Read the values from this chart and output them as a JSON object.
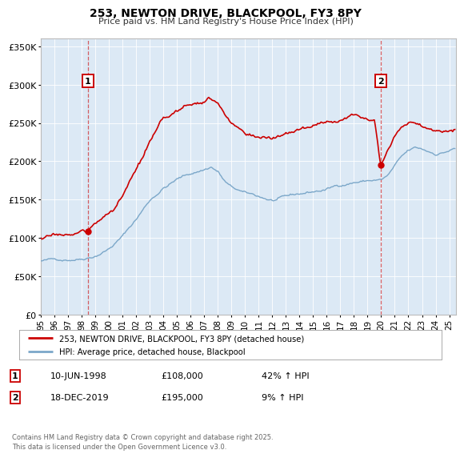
{
  "title": "253, NEWTON DRIVE, BLACKPOOL, FY3 8PY",
  "subtitle": "Price paid vs. HM Land Registry's House Price Index (HPI)",
  "legend_label_red": "253, NEWTON DRIVE, BLACKPOOL, FY3 8PY (detached house)",
  "legend_label_blue": "HPI: Average price, detached house, Blackpool",
  "sale1_date": "10-JUN-1998",
  "sale1_price": "£108,000",
  "sale1_hpi": "42% ↑ HPI",
  "sale1_year": 1998.44,
  "sale1_value": 108000,
  "sale2_date": "18-DEC-2019",
  "sale2_price": "£195,000",
  "sale2_hpi": "9% ↑ HPI",
  "sale2_year": 2019.96,
  "sale2_value": 195000,
  "red_color": "#cc0000",
  "blue_color": "#7ba7c9",
  "fig_bg_color": "#ffffff",
  "plot_bg_color": "#dce9f5",
  "footer_text": "Contains HM Land Registry data © Crown copyright and database right 2025.\nThis data is licensed under the Open Government Licence v3.0.",
  "ylim": [
    0,
    360000
  ],
  "yticks": [
    0,
    50000,
    100000,
    150000,
    200000,
    250000,
    300000,
    350000
  ],
  "ytick_labels": [
    "£0",
    "£50K",
    "£100K",
    "£150K",
    "£200K",
    "£250K",
    "£300K",
    "£350K"
  ],
  "xlim_start": 1995.0,
  "xlim_end": 2025.5,
  "xtick_years": [
    1995,
    1996,
    1997,
    1998,
    1999,
    2000,
    2001,
    2002,
    2003,
    2004,
    2005,
    2006,
    2007,
    2008,
    2009,
    2010,
    2011,
    2012,
    2013,
    2014,
    2015,
    2016,
    2017,
    2018,
    2019,
    2020,
    2021,
    2022,
    2023,
    2024,
    2025
  ],
  "xtick_labels": [
    "95",
    "96",
    "97",
    "98",
    "99",
    "00",
    "01",
    "02",
    "03",
    "04",
    "05",
    "06",
    "07",
    "08",
    "09",
    "10",
    "11",
    "12",
    "13",
    "14",
    "15",
    "16",
    "17",
    "18",
    "19",
    "20",
    "21",
    "22",
    "23",
    "24",
    "25"
  ]
}
